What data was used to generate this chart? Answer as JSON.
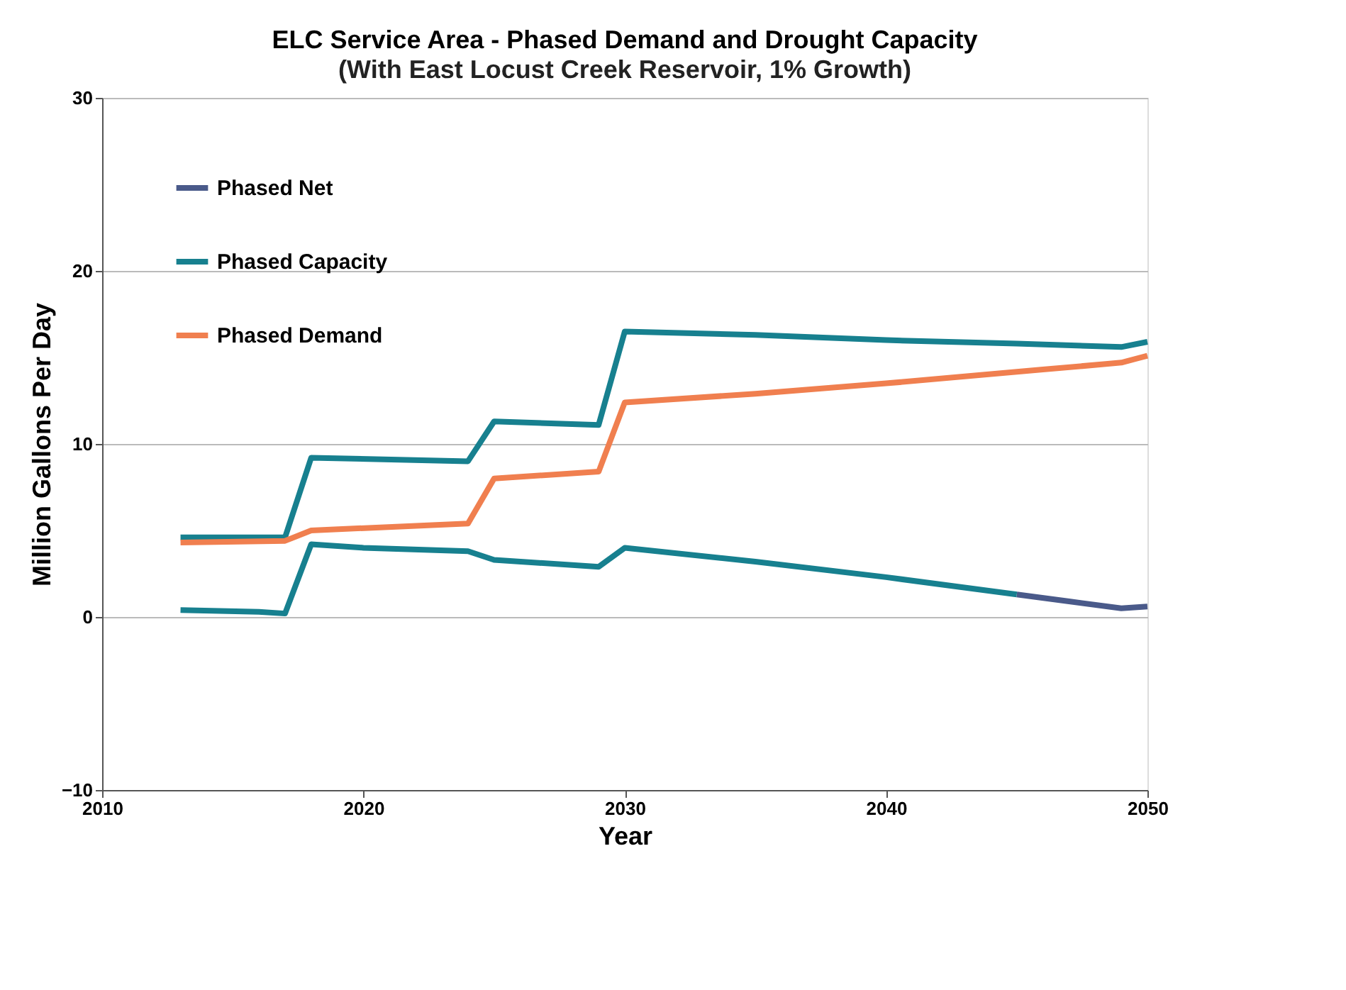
{
  "chart_data": {
    "type": "line",
    "title": "ELC Service Area - Phased Demand and Drought Capacity",
    "subtitle": "(With East Locust Creek Reservoir, 1% Growth)",
    "xlabel": "Year",
    "ylabel": "Million Gallons Per Day",
    "xlim": [
      2010,
      2050
    ],
    "xticks": [
      2010,
      2020,
      2030,
      2040,
      2050
    ],
    "ylim": [
      -10,
      30
    ],
    "yticks": [
      -10,
      0,
      10,
      20,
      30
    ],
    "grid": "y",
    "legend": "top left",
    "marker": "none",
    "line_style": "solid",
    "series": [
      {
        "name": "Phased Net",
        "color": "#4a5a8a",
        "x": [
          2045,
          2047,
          2049,
          2050
        ],
        "values": [
          1.3,
          0.9,
          0.5,
          0.6
        ]
      },
      {
        "name": "Phased Capacity",
        "color": "#17808f",
        "x": [
          2013,
          2017,
          2018,
          2024,
          2025,
          2029,
          2030,
          2035,
          2040,
          2045,
          2049,
          2050
        ],
        "values": [
          4.6,
          4.6,
          9.2,
          9.0,
          11.3,
          11.1,
          16.5,
          16.3,
          16.0,
          15.8,
          15.6,
          15.9
        ]
      },
      {
        "name": "Phased Demand",
        "color": "#f07f4f",
        "x": [
          2013,
          2017,
          2018,
          2024,
          2025,
          2029,
          2030,
          2035,
          2040,
          2046,
          2049,
          2050
        ],
        "values": [
          4.3,
          4.4,
          5.0,
          5.4,
          8.0,
          8.4,
          12.4,
          12.9,
          13.5,
          14.3,
          14.7,
          15.1
        ]
      },
      {
        "color": "#17808f",
        "x": [
          2013,
          2016,
          2017,
          2018,
          2020,
          2024,
          2025,
          2029,
          2030,
          2035,
          2040,
          2045
        ],
        "values": [
          0.4,
          0.3,
          0.2,
          4.2,
          4.0,
          3.8,
          3.3,
          2.9,
          4.0,
          3.2,
          2.3,
          1.3
        ]
      }
    ]
  }
}
